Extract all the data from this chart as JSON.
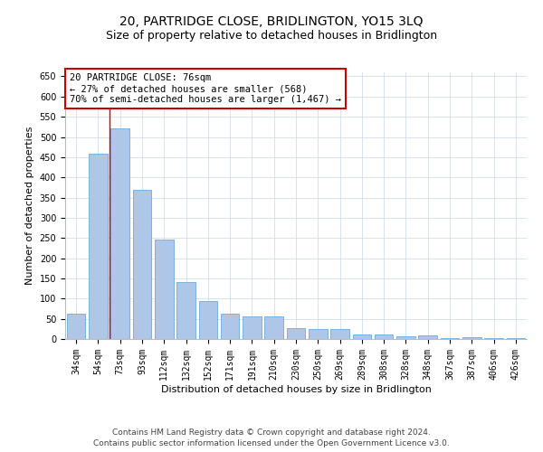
{
  "title": "20, PARTRIDGE CLOSE, BRIDLINGTON, YO15 3LQ",
  "subtitle": "Size of property relative to detached houses in Bridlington",
  "xlabel": "Distribution of detached houses by size in Bridlington",
  "ylabel": "Number of detached properties",
  "categories": [
    "34sqm",
    "54sqm",
    "73sqm",
    "93sqm",
    "112sqm",
    "132sqm",
    "152sqm",
    "171sqm",
    "191sqm",
    "210sqm",
    "230sqm",
    "250sqm",
    "269sqm",
    "289sqm",
    "308sqm",
    "328sqm",
    "348sqm",
    "367sqm",
    "387sqm",
    "406sqm",
    "426sqm"
  ],
  "values": [
    62,
    458,
    521,
    370,
    247,
    140,
    93,
    62,
    57,
    55,
    26,
    25,
    25,
    11,
    11,
    6,
    9,
    2,
    5,
    3,
    3
  ],
  "bar_color": "#aec6e8",
  "bar_edge_color": "#5a9fd4",
  "redline_index": 2,
  "annotation_text": "20 PARTRIDGE CLOSE: 76sqm\n← 27% of detached houses are smaller (568)\n70% of semi-detached houses are larger (1,467) →",
  "annotation_box_color": "#ffffff",
  "annotation_box_edge": "#cc0000",
  "ylim": [
    0,
    660
  ],
  "yticks": [
    0,
    50,
    100,
    150,
    200,
    250,
    300,
    350,
    400,
    450,
    500,
    550,
    600,
    650
  ],
  "footer_line1": "Contains HM Land Registry data © Crown copyright and database right 2024.",
  "footer_line2": "Contains public sector information licensed under the Open Government Licence v3.0.",
  "background_color": "#ffffff",
  "grid_color": "#c8d8e8",
  "title_fontsize": 10,
  "subtitle_fontsize": 9,
  "axis_label_fontsize": 8,
  "tick_fontsize": 7,
  "annotation_fontsize": 7.5,
  "footer_fontsize": 6.5
}
